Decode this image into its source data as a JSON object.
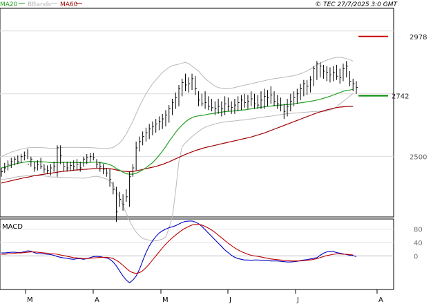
{
  "header": {
    "legend": [
      {
        "label": "MA20",
        "color": "#22a022"
      },
      {
        "label": "BBands",
        "color": "#b8b8b8"
      },
      {
        "label": "MA60",
        "color": "#a00000"
      }
    ],
    "copyright": "© TEC 27/7/2025 3:0 GMT"
  },
  "chart_data": [
    {
      "type": "line",
      "title": "",
      "ylim": [
        2260,
        3090
      ],
      "y_ticks": [
        "2500"
      ],
      "levels": [
        {
          "label": "2978",
          "value": 2978,
          "color": "#cc0000"
        },
        {
          "label": "2742",
          "value": 2742,
          "color": "#008800"
        }
      ],
      "x_ticks": [
        "M",
        "A",
        "M",
        "J",
        "J",
        "A"
      ],
      "grid": true,
      "series": [
        {
          "name": "MA20",
          "color": "#22a022"
        },
        {
          "name": "BBands",
          "color": "#b8b8b8"
        },
        {
          "name": "MA60",
          "color": "#a00000"
        }
      ],
      "price_bars": [
        [
          2420,
          2455,
          2440
        ],
        [
          2435,
          2475,
          2455
        ],
        [
          2445,
          2485,
          2470
        ],
        [
          2455,
          2495,
          2480
        ],
        [
          2465,
          2500,
          2490
        ],
        [
          2470,
          2505,
          2480
        ],
        [
          2475,
          2510,
          2500
        ],
        [
          2485,
          2520,
          2505
        ],
        [
          2490,
          2530,
          2470
        ],
        [
          2460,
          2500,
          2490
        ],
        [
          2440,
          2480,
          2455
        ],
        [
          2445,
          2485,
          2470
        ],
        [
          2450,
          2495,
          2460
        ],
        [
          2435,
          2470,
          2450
        ],
        [
          2430,
          2465,
          2445
        ],
        [
          2425,
          2470,
          2455
        ],
        [
          2440,
          2480,
          2460
        ],
        [
          2420,
          2545,
          2535
        ],
        [
          2470,
          2545,
          2505
        ],
        [
          2440,
          2480,
          2460
        ],
        [
          2440,
          2480,
          2455
        ],
        [
          2445,
          2480,
          2465
        ],
        [
          2445,
          2485,
          2460
        ],
        [
          2445,
          2490,
          2470
        ],
        [
          2440,
          2480,
          2455
        ],
        [
          2460,
          2500,
          2490
        ],
        [
          2470,
          2510,
          2495
        ],
        [
          2480,
          2515,
          2500
        ],
        [
          2485,
          2515,
          2495
        ],
        [
          2455,
          2490,
          2470
        ],
        [
          2440,
          2480,
          2460
        ],
        [
          2430,
          2470,
          2450
        ],
        [
          2420,
          2455,
          2435
        ],
        [
          2380,
          2450,
          2410
        ],
        [
          2350,
          2400,
          2370
        ],
        [
          2240,
          2380,
          2280
        ],
        [
          2300,
          2360,
          2330
        ],
        [
          2285,
          2350,
          2310
        ],
        [
          2320,
          2370,
          2340
        ],
        [
          2300,
          2440,
          2420
        ],
        [
          2420,
          2470,
          2455
        ],
        [
          2445,
          2560,
          2535
        ],
        [
          2520,
          2580,
          2560
        ],
        [
          2545,
          2600,
          2580
        ],
        [
          2560,
          2615,
          2595
        ],
        [
          2570,
          2630,
          2610
        ],
        [
          2585,
          2640,
          2620
        ],
        [
          2595,
          2650,
          2630
        ],
        [
          2605,
          2660,
          2640
        ],
        [
          2610,
          2670,
          2650
        ],
        [
          2620,
          2685,
          2665
        ],
        [
          2635,
          2705,
          2690
        ],
        [
          2665,
          2730,
          2715
        ],
        [
          2690,
          2755,
          2735
        ],
        [
          2700,
          2785,
          2770
        ],
        [
          2740,
          2810,
          2795
        ],
        [
          2760,
          2830,
          2785
        ],
        [
          2755,
          2815,
          2790
        ],
        [
          2765,
          2830,
          2810
        ],
        [
          2745,
          2820,
          2770
        ],
        [
          2700,
          2760,
          2725
        ],
        [
          2700,
          2750,
          2710
        ],
        [
          2690,
          2760,
          2715
        ],
        [
          2685,
          2740,
          2700
        ],
        [
          2680,
          2730,
          2695
        ],
        [
          2665,
          2720,
          2690
        ],
        [
          2670,
          2730,
          2700
        ],
        [
          2660,
          2720,
          2690
        ],
        [
          2665,
          2740,
          2710
        ],
        [
          2680,
          2735,
          2700
        ],
        [
          2670,
          2720,
          2695
        ],
        [
          2670,
          2730,
          2705
        ],
        [
          2680,
          2740,
          2715
        ],
        [
          2685,
          2745,
          2725
        ],
        [
          2695,
          2750,
          2715
        ],
        [
          2690,
          2745,
          2720
        ],
        [
          2700,
          2760,
          2730
        ],
        [
          2690,
          2750,
          2710
        ],
        [
          2690,
          2745,
          2705
        ],
        [
          2690,
          2760,
          2725
        ],
        [
          2690,
          2770,
          2740
        ],
        [
          2700,
          2765,
          2735
        ],
        [
          2710,
          2780,
          2745
        ],
        [
          2700,
          2760,
          2720
        ],
        [
          2690,
          2745,
          2710
        ],
        [
          2680,
          2735,
          2705
        ],
        [
          2650,
          2710,
          2680
        ],
        [
          2660,
          2730,
          2700
        ],
        [
          2680,
          2750,
          2720
        ],
        [
          2700,
          2760,
          2735
        ],
        [
          2710,
          2770,
          2750
        ],
        [
          2725,
          2790,
          2770
        ],
        [
          2740,
          2805,
          2790
        ],
        [
          2745,
          2805,
          2780
        ],
        [
          2755,
          2820,
          2805
        ],
        [
          2780,
          2860,
          2850
        ],
        [
          2805,
          2880,
          2870
        ],
        [
          2815,
          2875,
          2860
        ],
        [
          2810,
          2865,
          2840
        ],
        [
          2800,
          2860,
          2835
        ],
        [
          2795,
          2855,
          2825
        ],
        [
          2800,
          2860,
          2835
        ],
        [
          2805,
          2865,
          2820
        ],
        [
          2790,
          2850,
          2815
        ],
        [
          2800,
          2870,
          2850
        ],
        [
          2815,
          2880,
          2860
        ],
        [
          2780,
          2840,
          2800
        ],
        [
          2760,
          2810,
          2790
        ],
        [
          2750,
          2800,
          2775
        ]
      ],
      "ma20": [
        2455,
        2458,
        2462,
        2466,
        2470,
        2473,
        2476,
        2478,
        2480,
        2481,
        2480,
        2480,
        2480,
        2479,
        2478,
        2476,
        2476,
        2476,
        2477,
        2477,
        2477,
        2477,
        2476,
        2476,
        2476,
        2475,
        2476,
        2477,
        2478,
        2478,
        2476,
        2474,
        2472,
        2468,
        2462,
        2452,
        2446,
        2438,
        2432,
        2430,
        2430,
        2434,
        2440,
        2447,
        2456,
        2466,
        2476,
        2490,
        2505,
        2522,
        2540,
        2560,
        2578,
        2596,
        2612,
        2626,
        2638,
        2648,
        2655,
        2660,
        2662,
        2664,
        2666,
        2669,
        2671,
        2673,
        2675,
        2677,
        2679,
        2680,
        2681,
        2682,
        2684,
        2685,
        2686,
        2688,
        2690,
        2692,
        2694,
        2696,
        2698,
        2700,
        2701,
        2703,
        2704,
        2705,
        2706,
        2707,
        2708,
        2710,
        2712,
        2714,
        2716,
        2718,
        2720,
        2722,
        2725,
        2728,
        2732,
        2736,
        2740,
        2745,
        2750,
        2755,
        2760,
        2763,
        2765,
        2768
      ],
      "bb_upper": [
        2500,
        2506,
        2512,
        2518,
        2522,
        2526,
        2530,
        2533,
        2535,
        2536,
        2536,
        2536,
        2536,
        2535,
        2534,
        2533,
        2533,
        2534,
        2536,
        2537,
        2537,
        2537,
        2537,
        2537,
        2537,
        2536,
        2536,
        2536,
        2535,
        2534,
        2533,
        2533,
        2533,
        2534,
        2536,
        2545,
        2554,
        2570,
        2590,
        2615,
        2640,
        2670,
        2700,
        2725,
        2750,
        2770,
        2790,
        2805,
        2820,
        2835,
        2845,
        2855,
        2862,
        2865,
        2868,
        2872,
        2875,
        2870,
        2860,
        2850,
        2840,
        2825,
        2810,
        2800,
        2790,
        2780,
        2775,
        2772,
        2770,
        2770,
        2772,
        2775,
        2778,
        2781,
        2784,
        2787,
        2790,
        2793,
        2796,
        2799,
        2802,
        2805,
        2808,
        2810,
        2812,
        2814,
        2816,
        2818,
        2820,
        2822,
        2825,
        2830,
        2835,
        2841,
        2848,
        2856,
        2865,
        2872,
        2878,
        2884,
        2888,
        2892,
        2895,
        2895,
        2893,
        2890,
        2886,
        2880
      ],
      "bb_lower": [
        2410,
        2410,
        2412,
        2414,
        2418,
        2420,
        2422,
        2423,
        2425,
        2426,
        2424,
        2424,
        2424,
        2423,
        2422,
        2419,
        2419,
        2418,
        2418,
        2417,
        2417,
        2417,
        2415,
        2415,
        2415,
        2414,
        2416,
        2418,
        2421,
        2422,
        2419,
        2415,
        2411,
        2402,
        2388,
        2359,
        2338,
        2306,
        2274,
        2245,
        2220,
        2200,
        2185,
        2175,
        2170,
        2168,
        2165,
        2165,
        2168,
        2172,
        2180,
        2215,
        2260,
        2360,
        2480,
        2540,
        2555,
        2567,
        2580,
        2590,
        2600,
        2610,
        2617,
        2622,
        2626,
        2630,
        2633,
        2636,
        2638,
        2640,
        2641,
        2642,
        2644,
        2645,
        2646,
        2648,
        2650,
        2652,
        2654,
        2656,
        2658,
        2660,
        2661,
        2663,
        2665,
        2667,
        2669,
        2671,
        2672,
        2673,
        2674,
        2675,
        2676,
        2677,
        2678,
        2680,
        2680,
        2680,
        2680,
        2681,
        2685,
        2690,
        2700,
        2710,
        2720,
        2730,
        2740,
        2752
      ],
      "ma60": [
        2395,
        2398,
        2401,
        2404,
        2407,
        2410,
        2413,
        2416,
        2418,
        2421,
        2424,
        2426,
        2428,
        2430,
        2432,
        2434,
        2436,
        2438,
        2440,
        2442,
        2443,
        2444,
        2446,
        2447,
        2448,
        2449,
        2450,
        2451,
        2452,
        2453,
        2453,
        2453,
        2453,
        2452,
        2450,
        2447,
        2444,
        2442,
        2441,
        2440,
        2441,
        2443,
        2446,
        2449,
        2452,
        2455,
        2458,
        2461,
        2465,
        2469,
        2474,
        2479,
        2485,
        2491,
        2497,
        2503,
        2509,
        2514,
        2519,
        2524,
        2528,
        2532,
        2536,
        2539,
        2542,
        2545,
        2548,
        2551,
        2554,
        2557,
        2560,
        2563,
        2566,
        2569,
        2572,
        2575,
        2578,
        2582,
        2586,
        2590,
        2594,
        2599,
        2604,
        2609,
        2614,
        2619,
        2624,
        2629,
        2634,
        2639,
        2644,
        2649,
        2654,
        2659,
        2664,
        2669,
        2674,
        2678,
        2682,
        2686,
        2689,
        2692,
        2695,
        2697,
        2698,
        2699,
        2700,
        2700
      ]
    },
    {
      "type": "line",
      "title": "MACD",
      "ylim": [
        -100,
        110
      ],
      "y_ticks": [
        "80",
        "40",
        "0"
      ],
      "zero_line": true,
      "grid": true,
      "series": [
        {
          "name": "MACD",
          "color": "#0000c0",
          "values": [
            9,
            9,
            10,
            11,
            11,
            10,
            10,
            13,
            15,
            14,
            10,
            7,
            6,
            6,
            5,
            4,
            2,
            -2,
            -4,
            -6,
            -7,
            -9,
            -10,
            -8,
            -8,
            -10,
            -8,
            -5,
            -2,
            -1,
            -2,
            -4,
            -6,
            -10,
            -18,
            -30,
            -45,
            -60,
            -72,
            -80,
            -72,
            -60,
            -40,
            -15,
            10,
            30,
            45,
            58,
            68,
            75,
            80,
            84,
            87,
            90,
            95,
            100,
            103,
            104,
            104,
            101,
            96,
            88,
            78,
            68,
            58,
            48,
            38,
            28,
            18,
            10,
            2,
            -4,
            -8,
            -10,
            -12,
            -12,
            -13,
            -12,
            -12,
            -13,
            -13,
            -14,
            -15,
            -15,
            -15,
            -16,
            -17,
            -18,
            -18,
            -17,
            -16,
            -14,
            -12,
            -11,
            -9,
            -7,
            -5,
            2,
            8,
            12,
            14,
            13,
            10,
            8,
            6,
            4,
            2,
            1,
            -2
          ]
        },
        {
          "name": "Signal",
          "color": "#c00000",
          "values": [
            5,
            5,
            6,
            7,
            8,
            9,
            9,
            10,
            11,
            12,
            12,
            11,
            10,
            9,
            8,
            7,
            6,
            5,
            3,
            1,
            -1,
            -3,
            -5,
            -6,
            -7,
            -8,
            -8,
            -7,
            -6,
            -5,
            -4,
            -4,
            -4,
            -5,
            -8,
            -13,
            -20,
            -28,
            -37,
            -45,
            -50,
            -52,
            -50,
            -44,
            -35,
            -24,
            -12,
            0,
            12,
            24,
            35,
            45,
            54,
            62,
            70,
            77,
            83,
            88,
            92,
            94,
            94,
            92,
            88,
            83,
            77,
            70,
            62,
            54,
            46,
            38,
            31,
            24,
            18,
            13,
            9,
            5,
            2,
            0,
            -1,
            -3,
            -5,
            -7,
            -9,
            -10,
            -11,
            -12,
            -13,
            -14,
            -15,
            -15,
            -15,
            -15,
            -14,
            -13,
            -12,
            -10,
            -8,
            -5,
            -2,
            1,
            3,
            5,
            6,
            6,
            5,
            5,
            4,
            3
          ]
        }
      ]
    }
  ]
}
